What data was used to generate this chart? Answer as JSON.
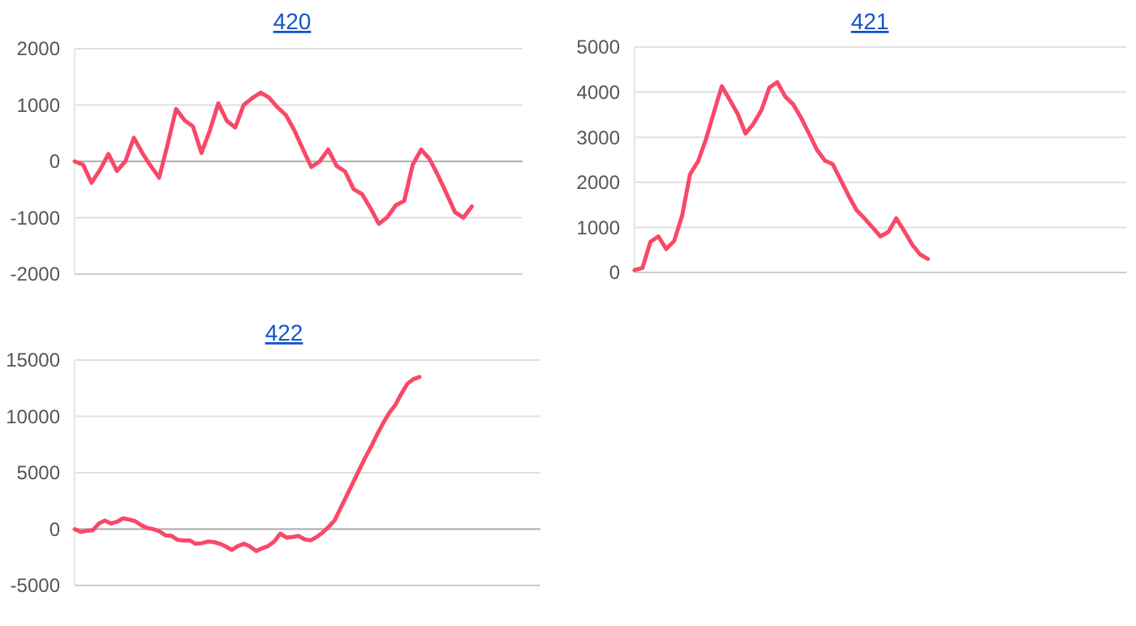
{
  "chart_data": [
    {
      "type": "line",
      "title": "420",
      "categories": [
        null,
        null,
        null,
        null,
        null,
        null,
        null,
        null,
        null,
        null,
        null,
        null,
        null,
        null,
        null,
        null,
        null,
        null,
        null,
        null,
        null,
        null,
        null,
        null,
        null,
        null,
        null,
        null,
        null,
        null,
        null,
        null,
        null,
        null,
        null,
        null,
        null,
        null,
        null,
        null,
        null,
        null,
        null,
        null,
        null,
        null,
        null,
        null,
        null,
        null,
        null,
        null,
        null,
        null
      ],
      "series": [
        {
          "color": "#f94868",
          "values": [
            0,
            -60,
            -380,
            -150,
            130,
            -170,
            0,
            420,
            150,
            -80,
            -290,
            300,
            930,
            730,
            620,
            150,
            550,
            1030,
            720,
            600,
            1000,
            1120,
            1220,
            1130,
            960,
            820,
            550,
            220,
            -100,
            0,
            210,
            -80,
            -180,
            -490,
            -580,
            -830,
            -1110,
            -990,
            -780,
            -700,
            -60,
            210,
            40,
            -250,
            -570,
            -900,
            -1000,
            -800,
            null,
            null,
            null,
            null,
            null,
            null
          ]
        }
      ],
      "ylim": [
        -2000,
        2000
      ],
      "yticks": [
        -2000,
        -1000,
        0,
        1000,
        2000
      ],
      "grid": "y",
      "tick_labels": "y"
    },
    {
      "type": "line",
      "title": "421",
      "categories": [
        null,
        null,
        null,
        null,
        null,
        null,
        null,
        null,
        null,
        null,
        null,
        null,
        null,
        null,
        null,
        null,
        null,
        null,
        null,
        null,
        null,
        null,
        null,
        null,
        null,
        null,
        null,
        null,
        null,
        null,
        null,
        null,
        null,
        null,
        null,
        null,
        null,
        null,
        null,
        null,
        null,
        null,
        null,
        null,
        null,
        null,
        null,
        null,
        null,
        null,
        null,
        null,
        null,
        null,
        null,
        null,
        null,
        null,
        null,
        null,
        null,
        null,
        null
      ],
      "series": [
        {
          "color": "#f94868",
          "values": [
            50,
            100,
            680,
            800,
            520,
            700,
            1260,
            2180,
            2460,
            2950,
            3550,
            4130,
            3830,
            3520,
            3080,
            3300,
            3600,
            4100,
            4220,
            3900,
            3730,
            3430,
            3080,
            2720,
            2480,
            2400,
            2050,
            1700,
            1380,
            1200,
            1000,
            800,
            900,
            1200,
            920,
            620,
            400,
            300,
            null,
            null,
            null,
            null,
            null,
            null,
            null,
            null,
            null,
            null,
            null,
            null,
            null,
            null,
            null,
            null,
            null,
            null,
            null,
            null,
            null,
            null,
            null,
            null,
            null
          ]
        }
      ],
      "ylim": [
        0,
        5000
      ],
      "yticks": [
        0,
        1000,
        2000,
        3000,
        4000,
        5000
      ],
      "grid": "y",
      "tick_labels": "y"
    },
    {
      "type": "line",
      "title": "422",
      "categories": [
        null,
        null,
        null,
        null,
        null,
        null,
        null,
        null,
        null,
        null,
        null,
        null,
        null,
        null,
        null,
        null,
        null,
        null,
        null,
        null,
        null,
        null,
        null,
        null,
        null,
        null,
        null,
        null,
        null,
        null,
        null,
        null,
        null,
        null,
        null,
        null,
        null,
        null,
        null,
        null,
        null,
        null,
        null,
        null,
        null,
        null,
        null,
        null,
        null,
        null,
        null,
        null,
        null,
        null,
        null,
        null,
        null,
        null,
        null,
        null,
        null,
        null,
        null,
        null,
        null,
        null,
        null,
        null,
        null,
        null,
        null,
        null,
        null,
        null,
        null,
        null,
        null,
        null
      ],
      "series": [
        {
          "color": "#f94868",
          "values": [
            0,
            -250,
            -150,
            -100,
            500,
            750,
            500,
            650,
            950,
            850,
            700,
            350,
            100,
            0,
            -200,
            -550,
            -600,
            -950,
            -1000,
            -1000,
            -1300,
            -1250,
            -1100,
            -1150,
            -1300,
            -1550,
            -1850,
            -1500,
            -1300,
            -1550,
            -1950,
            -1700,
            -1500,
            -1100,
            -400,
            -750,
            -700,
            -600,
            -900,
            -1000,
            -700,
            -300,
            200,
            800,
            1900,
            3000,
            4100,
            5200,
            6300,
            7300,
            8400,
            9400,
            10300,
            11000,
            12000,
            12900,
            13300,
            13500,
            null,
            null,
            null,
            null,
            null,
            null,
            null,
            null,
            null,
            null,
            null,
            null,
            null,
            null,
            null,
            null,
            null,
            null,
            null,
            null
          ]
        }
      ],
      "ylim": [
        -5000,
        15000
      ],
      "yticks": [
        -5000,
        0,
        5000,
        10000,
        15000
      ],
      "grid": "y",
      "tick_labels": "y"
    }
  ]
}
